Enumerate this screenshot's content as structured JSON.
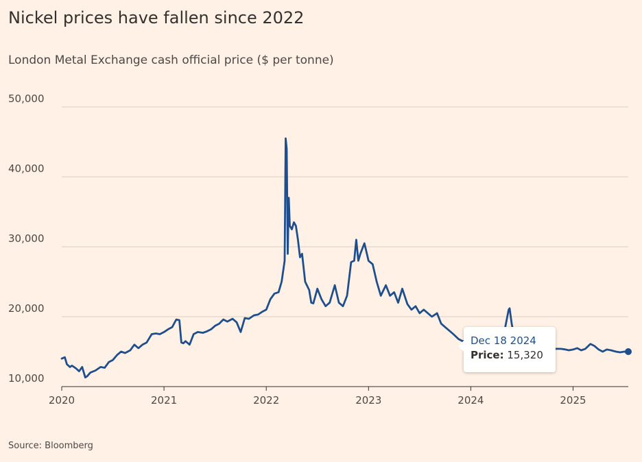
{
  "chart_data": {
    "type": "line",
    "title": "Nickel prices have fallen since 2022",
    "subtitle": "London Metal Exchange cash official price ($ per tonne)",
    "source": "Source: Bloomberg",
    "xlabel": "",
    "ylabel": "",
    "xlim": [
      2020.0,
      2025.54
    ],
    "ylim": [
      10000,
      50000
    ],
    "x_ticks": [
      "2020",
      "2021",
      "2022",
      "2023",
      "2024",
      "2025"
    ],
    "y_ticks": [
      "10,000",
      "20,000",
      "30,000",
      "40,000",
      "50,000"
    ],
    "grid": true,
    "line_color": "#1F4E8C",
    "series": [
      {
        "x": [
          2020.0,
          2020.03,
          2020.05,
          2020.08,
          2020.1,
          2020.14,
          2020.17,
          2020.2,
          2020.23,
          2020.25,
          2020.28,
          2020.33,
          2020.38,
          2020.42,
          2020.46,
          2020.5,
          2020.54,
          2020.58,
          2020.62,
          2020.67,
          2020.71,
          2020.75,
          2020.79,
          2020.83,
          2020.88,
          2020.92,
          2020.96,
          2021.0,
          2021.04,
          2021.08,
          2021.12,
          2021.15,
          2021.17,
          2021.19,
          2021.21,
          2021.25,
          2021.29,
          2021.33,
          2021.38,
          2021.42,
          2021.46,
          2021.5,
          2021.54,
          2021.58,
          2021.62,
          2021.67,
          2021.71,
          2021.75,
          2021.79,
          2021.83,
          2021.88,
          2021.92,
          2021.96,
          2022.0,
          2022.04,
          2022.08,
          2022.12,
          2022.15,
          2022.18,
          2022.19,
          2022.2,
          2022.21,
          2022.22,
          2022.23,
          2022.25,
          2022.27,
          2022.29,
          2022.31,
          2022.33,
          2022.35,
          2022.38,
          2022.42,
          2022.44,
          2022.46,
          2022.5,
          2022.54,
          2022.58,
          2022.62,
          2022.67,
          2022.71,
          2022.75,
          2022.79,
          2022.83,
          2022.86,
          2022.88,
          2022.9,
          2022.92,
          2022.96,
          2023.0,
          2023.04,
          2023.08,
          2023.12,
          2023.17,
          2023.21,
          2023.25,
          2023.29,
          2023.33,
          2023.38,
          2023.42,
          2023.46,
          2023.5,
          2023.54,
          2023.58,
          2023.62,
          2023.67,
          2023.71,
          2023.75,
          2023.79,
          2023.83,
          2023.88,
          2023.92,
          2023.96,
          2024.0,
          2024.04,
          2024.08,
          2024.12,
          2024.17,
          2024.21,
          2024.25,
          2024.29,
          2024.33,
          2024.37,
          2024.38,
          2024.4,
          2024.42,
          2024.46,
          2024.5,
          2024.54,
          2024.58,
          2024.62,
          2024.67,
          2024.71,
          2024.75,
          2024.79,
          2024.83,
          2024.88,
          2024.92,
          2024.96,
          2025.0,
          2025.04,
          2025.08,
          2025.12,
          2025.17,
          2025.21,
          2025.25,
          2025.29,
          2025.33,
          2025.37,
          2025.42,
          2025.46,
          2025.5,
          2025.54
        ],
        "y": [
          14000,
          14200,
          13200,
          12800,
          13000,
          12600,
          12200,
          12800,
          11300,
          11500,
          12000,
          12300,
          12800,
          12700,
          13500,
          13800,
          14500,
          15000,
          14800,
          15200,
          16000,
          15500,
          16000,
          16300,
          17500,
          17600,
          17500,
          17800,
          18200,
          18500,
          19600,
          19500,
          16300,
          16200,
          16500,
          16000,
          17500,
          17800,
          17700,
          17900,
          18200,
          18700,
          19000,
          19600,
          19300,
          19700,
          19200,
          17800,
          19800,
          19700,
          20200,
          20300,
          20700,
          21000,
          22500,
          23300,
          23500,
          25000,
          28000,
          45500,
          44000,
          29000,
          37000,
          33000,
          32500,
          33500,
          33000,
          31000,
          28500,
          29000,
          25000,
          23800,
          22000,
          21900,
          24000,
          22500,
          21500,
          22000,
          24500,
          22000,
          21500,
          23000,
          27800,
          28000,
          31000,
          28000,
          29000,
          30500,
          28000,
          27500,
          25000,
          23000,
          24500,
          23000,
          23500,
          22000,
          24000,
          21800,
          21000,
          21500,
          20500,
          21000,
          20500,
          20000,
          20500,
          19000,
          18500,
          18000,
          17500,
          16800,
          16500,
          16600,
          16200,
          16300,
          16400,
          16700,
          17100,
          17200,
          17300,
          17500,
          18000,
          21000,
          21200,
          19000,
          17500,
          16500,
          16200,
          16000,
          16300,
          16500,
          16300,
          15800,
          15600,
          15500,
          15400,
          15400,
          15320,
          15200,
          15300,
          15500,
          15200,
          15400,
          16100,
          15800,
          15300,
          15000,
          15300,
          15200,
          15000,
          14900,
          15000,
          15000
        ]
      }
    ],
    "highlight": {
      "x": 2025.54,
      "y": 15000
    },
    "tooltip": {
      "date": "Dec 18 2024",
      "label": "Price:",
      "value": "15,320"
    }
  }
}
